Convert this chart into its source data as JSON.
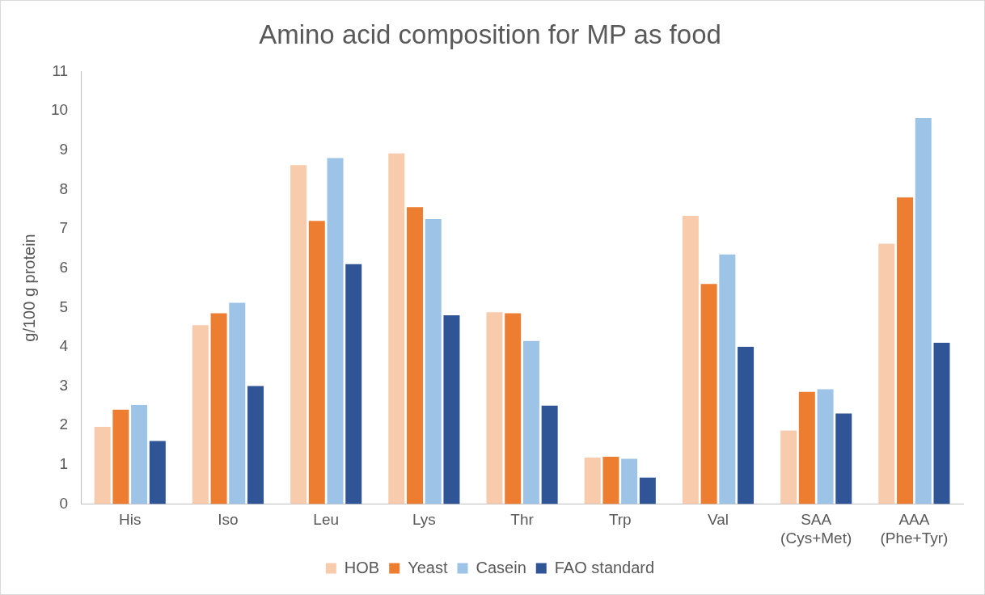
{
  "chart_data": {
    "type": "bar",
    "title": "Amino acid composition for MP as food",
    "ylabel": "g/100 g protein",
    "categories": [
      "His",
      "Iso",
      "Leu",
      "Lys",
      "Thr",
      "Trp",
      "Val",
      "SAA (Cys+Met)",
      "AAA (Phe+Tyr)"
    ],
    "series": [
      {
        "name": "HOB",
        "color": "#f8cbad",
        "values": [
          1.96,
          4.55,
          8.62,
          8.92,
          4.88,
          1.18,
          7.33,
          1.87,
          6.62
        ]
      },
      {
        "name": "Yeast",
        "color": "#ed7d31",
        "values": [
          2.4,
          4.85,
          7.2,
          7.55,
          4.85,
          1.2,
          5.6,
          2.85,
          7.8
        ]
      },
      {
        "name": "Casein",
        "color": "#9dc3e6",
        "values": [
          2.52,
          5.12,
          8.8,
          7.25,
          4.15,
          1.15,
          6.35,
          2.92,
          9.82
        ]
      },
      {
        "name": "FAO standard",
        "color": "#2f5597",
        "values": [
          1.6,
          3.0,
          6.1,
          4.8,
          2.5,
          0.67,
          4.0,
          2.3,
          4.1
        ]
      }
    ],
    "ylim": [
      0,
      11
    ],
    "yticks": [
      0,
      1,
      2,
      3,
      4,
      5,
      6,
      7,
      8,
      9,
      10,
      11
    ],
    "grid": false,
    "legend": "bottom"
  }
}
